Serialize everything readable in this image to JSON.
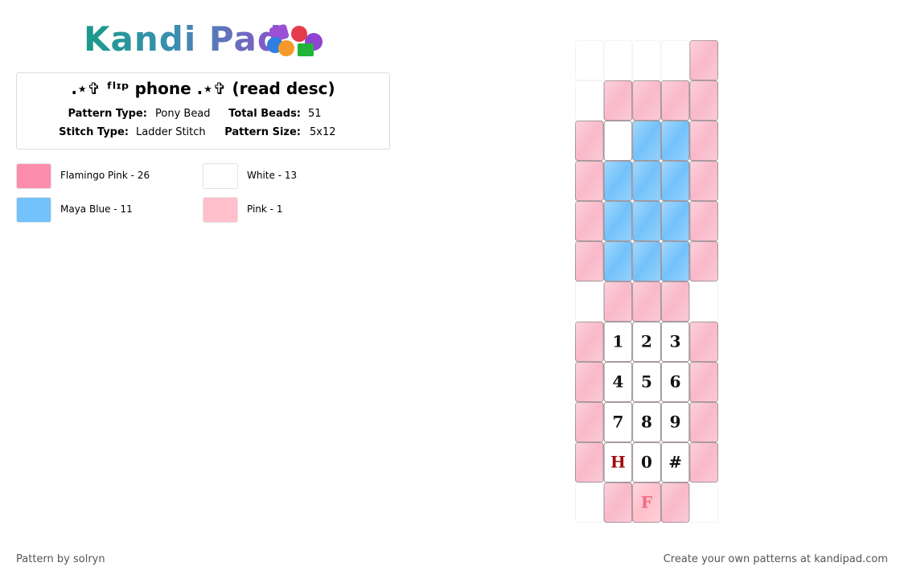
{
  "header": {
    "logo": "Kandi Pad",
    "title": ".⋆✞ ᶠˡᶦᵖ phone .⋆✞ (read desc)",
    "details": [
      {
        "label": "Pattern Type:",
        "value": "Pony Bead"
      },
      {
        "label": "Total Beads:",
        "value": 51
      },
      {
        "label": "Stitch Type:",
        "value": "Ladder Stitch"
      },
      {
        "label": "Pattern Size:",
        "value": "5x12"
      }
    ]
  },
  "legend": [
    {
      "name": "Flamingo Pink - 26",
      "color": "#fc8eac"
    },
    {
      "name": "White - 13",
      "color": "#ffffff"
    },
    {
      "name": "Maya Blue - 11",
      "color": "#73c2fb"
    },
    {
      "name": "Pink - 1",
      "color": "#ffc0cb"
    }
  ],
  "grid": {
    "rows": [
      [
        null,
        null,
        null,
        null,
        "#f9b9c9"
      ],
      [
        null,
        "#f9b9c9",
        "#f9b9c9",
        "#f9b9c9",
        "#f9b9c9"
      ],
      [
        "#f9b9c9",
        "#ffffff",
        "#73c2fb",
        "#73c2fb",
        "#f9b9c9"
      ],
      [
        "#f9b9c9",
        "#73c2fb",
        "#73c2fb",
        "#73c2fb",
        "#f9b9c9"
      ],
      [
        "#f9b9c9",
        "#73c2fb",
        "#73c2fb",
        "#73c2fb",
        "#f9b9c9"
      ],
      [
        "#f9b9c9",
        "#73c2fb",
        "#73c2fb",
        "#73c2fb",
        "#f9b9c9"
      ],
      [
        null,
        "#f9b9c9",
        "#f9b9c9",
        "#f9b9c9",
        null
      ],
      [
        "#f9b9c9",
        {
          "color": "#ffffff",
          "label": "1",
          "text_color": "#111111"
        },
        {
          "color": "#ffffff",
          "label": "2",
          "text_color": "#111111"
        },
        {
          "color": "#ffffff",
          "label": "3",
          "text_color": "#111111"
        },
        "#f9b9c9"
      ],
      [
        "#f9b9c9",
        {
          "color": "#ffffff",
          "label": "4",
          "text_color": "#111111"
        },
        {
          "color": "#ffffff",
          "label": "5",
          "text_color": "#111111"
        },
        {
          "color": "#ffffff",
          "label": "6",
          "text_color": "#111111"
        },
        "#f9b9c9"
      ],
      [
        "#f9b9c9",
        {
          "color": "#ffffff",
          "label": "7",
          "text_color": "#111111"
        },
        {
          "color": "#ffffff",
          "label": "8",
          "text_color": "#111111"
        },
        {
          "color": "#ffffff",
          "label": "9",
          "text_color": "#111111"
        },
        "#f9b9c9"
      ],
      [
        "#f9b9c9",
        {
          "color": "#ffffff",
          "label": "H",
          "text_color": "#a10d0d"
        },
        {
          "color": "#ffffff",
          "label": "0",
          "text_color": "#111111"
        },
        {
          "color": "#ffffff",
          "label": "#",
          "text_color": "#111111"
        },
        "#f9b9c9"
      ],
      [
        null,
        "#f9b9c9",
        {
          "color": "#ffc0cb",
          "label": "F",
          "text_color": "#f06a80"
        },
        "#f9b9c9",
        null
      ]
    ]
  },
  "footer": {
    "left": "Pattern by solryn",
    "right": "Create your own patterns at kandipad.com"
  }
}
